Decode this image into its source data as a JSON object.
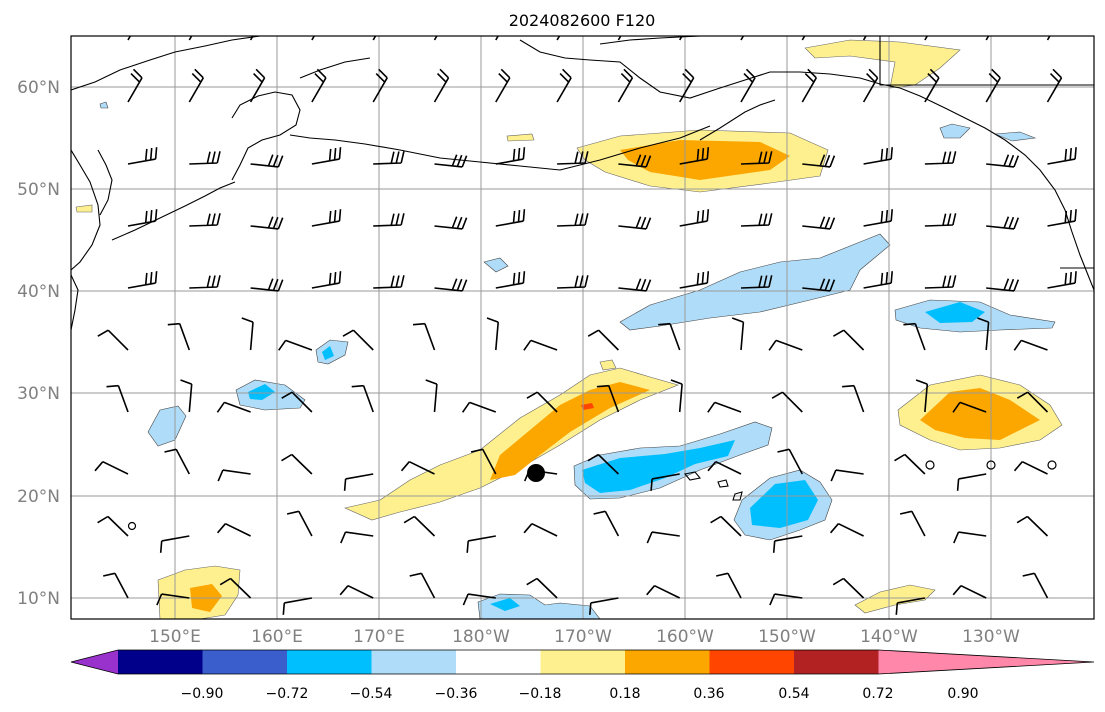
{
  "title": "2024082600 F120",
  "lat_labels": [
    "60°N",
    "50°N",
    "40°N",
    "30°N",
    "20°N",
    "10°N"
  ],
  "lon_labels": [
    "150°E",
    "160°E",
    "170°E",
    "180°W",
    "170°W",
    "160°W",
    "150°W",
    "140°W",
    "130°W"
  ],
  "colorbar": {
    "ticks": [
      "−0.90",
      "−0.72",
      "−0.54",
      "−0.36",
      "−0.18",
      "0.18",
      "0.36",
      "0.54",
      "0.72",
      "0.90"
    ],
    "colors": [
      "#9932cc",
      "#00008b",
      "#3a5fcd",
      "#00bfff",
      "#afdcf8",
      "#ffffff",
      "#fff08f",
      "#fca600",
      "#ff4500",
      "#b22222",
      "#ff88aa"
    ]
  },
  "marker": "storm-center"
}
